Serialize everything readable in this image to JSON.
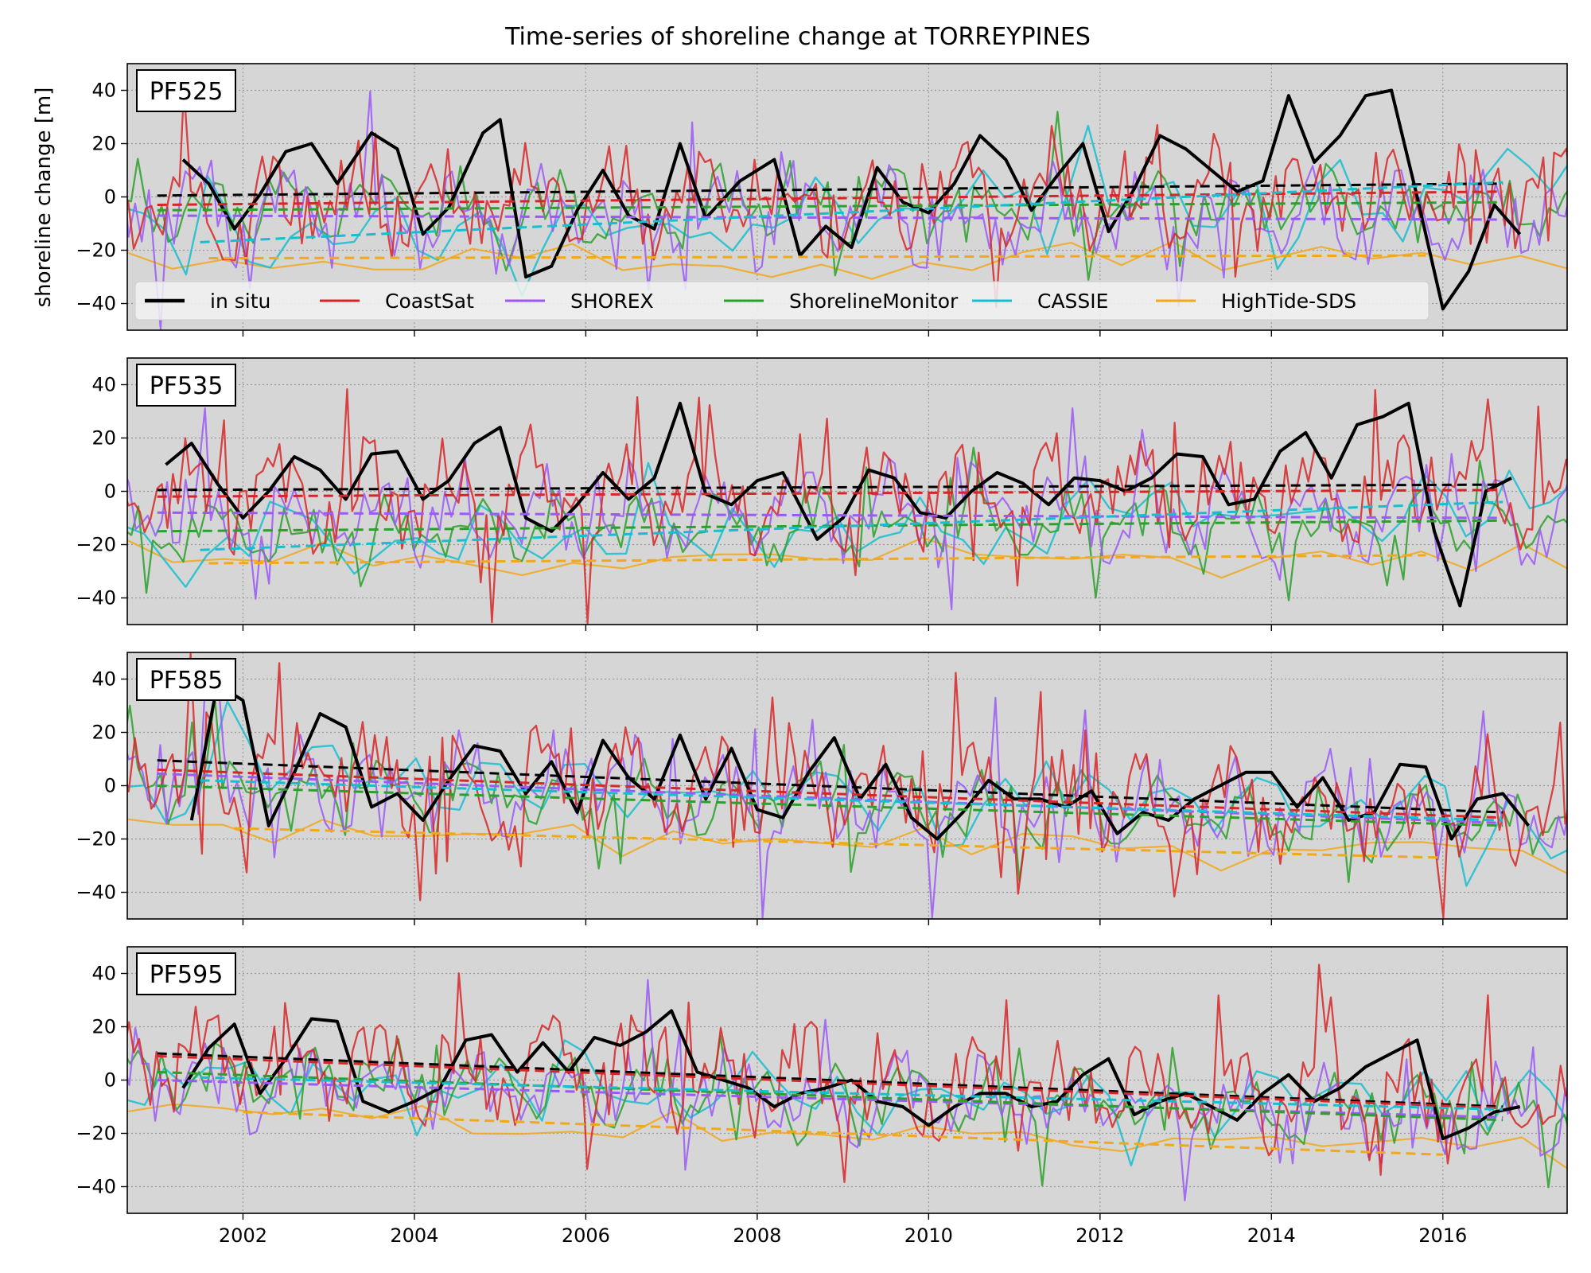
{
  "chart_data": {
    "type": "line",
    "title": "Time-series of shoreline change at TORREYPINES",
    "ylabel": "shoreline change [m]",
    "xlabel": "",
    "grid": true,
    "legend_position": "bottom of first panel, single row",
    "ylim": [
      -50,
      50
    ],
    "yticks": [
      -40,
      -20,
      0,
      20,
      40
    ],
    "xticks": [
      "2002",
      "2004",
      "2006",
      "2008",
      "2010",
      "2012",
      "2014",
      "2016"
    ],
    "legend": [
      {
        "name": "in situ",
        "color": "#000000"
      },
      {
        "name": "CoastSat",
        "color": "#d62728"
      },
      {
        "name": "SHOREX",
        "color": "#9b59f5"
      },
      {
        "name": "ShorelineMonitor",
        "color": "#2ca02c"
      },
      {
        "name": "CASSIE",
        "color": "#17becf"
      },
      {
        "name": "HighTide-SDS",
        "color": "#f0a81c"
      }
    ],
    "panels": [
      {
        "label": "PF525",
        "xlim": [
          2000.65,
          2017.45
        ],
        "trends": [
          {
            "name": "in situ",
            "x": [
              2001.0,
              2016.7
            ],
            "y": [
              0.5,
              5.0
            ]
          },
          {
            "name": "CoastSat",
            "x": [
              2001.0,
              2016.7
            ],
            "y": [
              -3.0,
              2.0
            ]
          },
          {
            "name": "SHOREX",
            "x": [
              2001.0,
              2016.7
            ],
            "y": [
              -7.0,
              -8.5
            ]
          },
          {
            "name": "ShorelineMonitor",
            "x": [
              2001.0,
              2016.7
            ],
            "y": [
              -5.0,
              -2.0
            ]
          },
          {
            "name": "CASSIE",
            "x": [
              2001.5,
              2016.7
            ],
            "y": [
              -17.0,
              5.5
            ]
          },
          {
            "name": "HighTide-SDS",
            "x": [
              2001.6,
              2015.8
            ],
            "y": [
              -23.0,
              -22.0
            ]
          }
        ],
        "insitu": {
          "x": [
            2001.3,
            2001.6,
            2001.9,
            2002.2,
            2002.5,
            2002.8,
            2003.1,
            2003.5,
            2003.8,
            2004.1,
            2004.4,
            2004.8,
            2005.0,
            2005.3,
            2005.6,
            2005.9,
            2006.2,
            2006.5,
            2006.8,
            2007.1,
            2007.4,
            2007.8,
            2008.2,
            2008.5,
            2008.8,
            2009.1,
            2009.4,
            2009.7,
            2010.0,
            2010.3,
            2010.6,
            2010.9,
            2011.2,
            2011.5,
            2011.8,
            2012.1,
            2012.4,
            2012.7,
            2013.0,
            2013.3,
            2013.6,
            2013.9,
            2014.2,
            2014.5,
            2014.8,
            2015.1,
            2015.4,
            2015.7,
            2016.0,
            2016.3,
            2016.6,
            2016.9
          ],
          "y": [
            14,
            5,
            -12,
            1,
            17,
            20,
            5,
            24,
            18,
            -14,
            -4,
            24,
            29,
            -30,
            -26,
            -5,
            10,
            -7,
            -12,
            20,
            -8,
            6,
            14,
            -22,
            -11,
            -19,
            11,
            -2,
            -6,
            5,
            23,
            14,
            -5,
            8,
            20,
            -13,
            3,
            23,
            18,
            10,
            2,
            6,
            38,
            13,
            23,
            38,
            40,
            0,
            -42,
            -28,
            -3,
            -14
          ]
        }
      },
      {
        "label": "PF535",
        "xlim": [
          2000.65,
          2017.45
        ],
        "trends": [
          {
            "name": "in situ",
            "x": [
              2001.0,
              2016.7
            ],
            "y": [
              0.5,
              2.5
            ]
          },
          {
            "name": "CoastSat",
            "x": [
              2001.0,
              2016.7
            ],
            "y": [
              -2.0,
              0.5
            ]
          },
          {
            "name": "SHOREX",
            "x": [
              2001.0,
              2016.7
            ],
            "y": [
              -8.0,
              -10.0
            ]
          },
          {
            "name": "ShorelineMonitor",
            "x": [
              2001.0,
              2016.7
            ],
            "y": [
              -15.0,
              -11.0
            ]
          },
          {
            "name": "CASSIE",
            "x": [
              2001.5,
              2016.7
            ],
            "y": [
              -22.0,
              -4.0
            ]
          },
          {
            "name": "HighTide-SDS",
            "x": [
              2001.6,
              2015.8
            ],
            "y": [
              -27.0,
              -24.0
            ]
          }
        ],
        "insitu": {
          "x": [
            2001.1,
            2001.4,
            2001.7,
            2002.0,
            2002.3,
            2002.6,
            2002.9,
            2003.2,
            2003.5,
            2003.8,
            2004.1,
            2004.4,
            2004.7,
            2005.0,
            2005.3,
            2005.6,
            2005.9,
            2006.2,
            2006.5,
            2006.8,
            2007.1,
            2007.4,
            2007.7,
            2008.0,
            2008.3,
            2008.7,
            2009.0,
            2009.3,
            2009.6,
            2009.9,
            2010.2,
            2010.5,
            2010.8,
            2011.1,
            2011.4,
            2011.7,
            2012.0,
            2012.3,
            2012.6,
            2012.9,
            2013.2,
            2013.5,
            2013.8,
            2014.1,
            2014.4,
            2014.7,
            2015.0,
            2015.3,
            2015.6,
            2015.9,
            2016.2,
            2016.5,
            2016.8
          ],
          "y": [
            10,
            18,
            3,
            -10,
            0,
            13,
            8,
            -3,
            14,
            15,
            -3,
            4,
            18,
            24,
            -10,
            -15,
            -5,
            7,
            -3,
            5,
            33,
            -1,
            -5,
            4,
            7,
            -18,
            -10,
            8,
            5,
            -8,
            -10,
            0,
            7,
            3,
            -5,
            5,
            4,
            0,
            5,
            14,
            13,
            -5,
            -3,
            15,
            22,
            5,
            25,
            28,
            33,
            -15,
            -43,
            0,
            5
          ]
        }
      },
      {
        "label": "PF585",
        "xlim": [
          2000.65,
          2017.45
        ],
        "trends": [
          {
            "name": "in situ",
            "x": [
              2001.0,
              2016.7
            ],
            "y": [
              9.5,
              -10.0
            ]
          },
          {
            "name": "CoastSat",
            "x": [
              2001.0,
              2016.7
            ],
            "y": [
              6.0,
              -12.0
            ]
          },
          {
            "name": "SHOREX",
            "x": [
              2001.0,
              2016.7
            ],
            "y": [
              4.5,
              -14.0
            ]
          },
          {
            "name": "ShorelineMonitor",
            "x": [
              2001.0,
              2016.7
            ],
            "y": [
              0.0,
              -15.0
            ]
          },
          {
            "name": "CASSIE",
            "x": [
              2001.5,
              2016.7
            ],
            "y": [
              2.0,
              -13.0
            ]
          },
          {
            "name": "HighTide-SDS",
            "x": [
              2001.9,
              2016.0
            ],
            "y": [
              -16.0,
              -27.0
            ]
          }
        ],
        "insitu": {
          "x": [
            2001.4,
            2001.7,
            2002.0,
            2002.3,
            2002.6,
            2002.9,
            2003.2,
            2003.5,
            2003.8,
            2004.1,
            2004.4,
            2004.7,
            2005.0,
            2005.3,
            2005.6,
            2005.9,
            2006.2,
            2006.5,
            2006.8,
            2007.1,
            2007.4,
            2007.7,
            2008.0,
            2008.3,
            2008.6,
            2008.9,
            2009.2,
            2009.5,
            2009.8,
            2010.1,
            2010.4,
            2010.7,
            2011.0,
            2011.3,
            2011.6,
            2011.9,
            2012.2,
            2012.5,
            2012.8,
            2013.1,
            2013.4,
            2013.7,
            2014.0,
            2014.3,
            2014.6,
            2014.9,
            2015.2,
            2015.5,
            2015.8,
            2016.1,
            2016.4,
            2016.7,
            2017.0
          ],
          "y": [
            -13,
            38,
            32,
            -15,
            5,
            27,
            22,
            -8,
            -3,
            -13,
            2,
            15,
            13,
            -3,
            9,
            -10,
            17,
            3,
            -5,
            19,
            -5,
            14,
            -9,
            -12,
            5,
            18,
            -5,
            8,
            -12,
            -20,
            -10,
            2,
            -5,
            -5,
            -8,
            -2,
            -18,
            -10,
            -13,
            -5,
            0,
            5,
            5,
            -8,
            3,
            -13,
            -10,
            8,
            7,
            -20,
            -5,
            -3,
            -15
          ]
        }
      },
      {
        "label": "PF595",
        "xlim": [
          2000.65,
          2017.45
        ],
        "trends": [
          {
            "name": "in situ",
            "x": [
              2001.0,
              2016.7
            ],
            "y": [
              10.0,
              -10.0
            ]
          },
          {
            "name": "CoastSat",
            "x": [
              2001.0,
              2016.7
            ],
            "y": [
              9.0,
              -10.5
            ]
          },
          {
            "name": "SHOREX",
            "x": [
              2001.0,
              2016.7
            ],
            "y": [
              0.0,
              -14.0
            ]
          },
          {
            "name": "ShorelineMonitor",
            "x": [
              2001.0,
              2016.7
            ],
            "y": [
              3.0,
              -15.0
            ]
          },
          {
            "name": "CASSIE",
            "x": [
              2001.5,
              2016.7
            ],
            "y": [
              1.0,
              -11.0
            ]
          },
          {
            "name": "HighTide-SDS",
            "x": [
              2002.0,
              2016.0
            ],
            "y": [
              -12.0,
              -28.0
            ]
          }
        ],
        "insitu": {
          "x": [
            2001.3,
            2001.6,
            2001.9,
            2002.2,
            2002.5,
            2002.8,
            2003.1,
            2003.4,
            2003.7,
            2004.0,
            2004.3,
            2004.6,
            2004.9,
            2005.2,
            2005.5,
            2005.8,
            2006.1,
            2006.4,
            2006.7,
            2007.0,
            2007.3,
            2007.6,
            2007.9,
            2008.2,
            2008.5,
            2008.8,
            2009.1,
            2009.4,
            2009.7,
            2010.0,
            2010.3,
            2010.6,
            2010.9,
            2011.2,
            2011.5,
            2011.8,
            2012.1,
            2012.4,
            2012.7,
            2013.0,
            2013.3,
            2013.6,
            2013.9,
            2014.2,
            2014.5,
            2014.8,
            2015.1,
            2015.4,
            2015.7,
            2016.0,
            2016.3,
            2016.6,
            2016.9
          ],
          "y": [
            -3,
            12,
            21,
            -5,
            8,
            23,
            22,
            -8,
            -12,
            -8,
            -3,
            15,
            17,
            3,
            14,
            3,
            16,
            13,
            18,
            26,
            3,
            0,
            -3,
            -10,
            -5,
            -3,
            0,
            -8,
            -10,
            -17,
            -10,
            -5,
            -5,
            -10,
            -8,
            2,
            8,
            -13,
            -8,
            -5,
            -10,
            -15,
            -5,
            2,
            -8,
            -3,
            5,
            10,
            15,
            -22,
            -18,
            -12,
            -10
          ]
        }
      }
    ]
  }
}
